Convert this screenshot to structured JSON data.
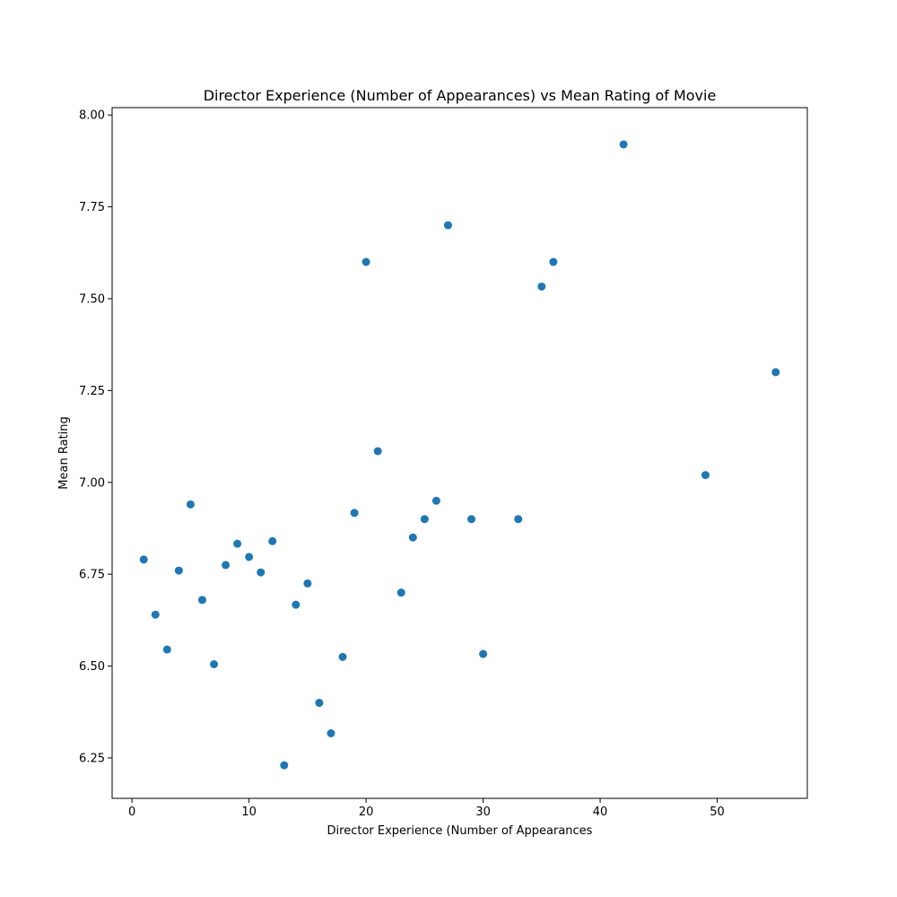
{
  "chart_data": {
    "type": "scatter",
    "title": "Director Experience (Number of Appearances) vs Mean Rating of Movie",
    "xlabel": "Director Experience (Number of Appearances",
    "ylabel": "Mean Rating",
    "xlim": [
      -1.7,
      57.7
    ],
    "ylim": [
      6.14,
      8.02
    ],
    "x_ticks": [
      0,
      10,
      20,
      30,
      40,
      50
    ],
    "x_tick_labels": [
      "0",
      "10",
      "20",
      "30",
      "40",
      "50"
    ],
    "y_ticks": [
      6.25,
      6.5,
      6.75,
      7.0,
      7.25,
      7.5,
      7.75,
      8.0
    ],
    "y_tick_labels": [
      "6.25",
      "6.50",
      "6.75",
      "7.00",
      "7.25",
      "7.50",
      "7.75",
      "8.00"
    ],
    "grid": false,
    "marker_color": "#1f77b4",
    "points": [
      {
        "x": 1,
        "y": 6.79
      },
      {
        "x": 2,
        "y": 6.64
      },
      {
        "x": 3,
        "y": 6.545
      },
      {
        "x": 4,
        "y": 6.76
      },
      {
        "x": 5,
        "y": 6.94
      },
      {
        "x": 6,
        "y": 6.68
      },
      {
        "x": 7,
        "y": 6.505
      },
      {
        "x": 8,
        "y": 6.775
      },
      {
        "x": 9,
        "y": 6.833
      },
      {
        "x": 10,
        "y": 6.797
      },
      {
        "x": 11,
        "y": 6.755
      },
      {
        "x": 12,
        "y": 6.84
      },
      {
        "x": 13,
        "y": 6.23
      },
      {
        "x": 14,
        "y": 6.667
      },
      {
        "x": 15,
        "y": 6.725
      },
      {
        "x": 16,
        "y": 6.4
      },
      {
        "x": 17,
        "y": 6.317
      },
      {
        "x": 18,
        "y": 6.525
      },
      {
        "x": 19,
        "y": 6.917
      },
      {
        "x": 20,
        "y": 7.6
      },
      {
        "x": 21,
        "y": 7.085
      },
      {
        "x": 23,
        "y": 6.7
      },
      {
        "x": 24,
        "y": 6.85
      },
      {
        "x": 25,
        "y": 6.9
      },
      {
        "x": 26,
        "y": 6.95
      },
      {
        "x": 27,
        "y": 7.7
      },
      {
        "x": 29,
        "y": 6.9
      },
      {
        "x": 30,
        "y": 6.533
      },
      {
        "x": 33,
        "y": 6.9
      },
      {
        "x": 35,
        "y": 7.533
      },
      {
        "x": 36,
        "y": 7.6
      },
      {
        "x": 42,
        "y": 7.92
      },
      {
        "x": 49,
        "y": 7.02
      },
      {
        "x": 55,
        "y": 7.3
      }
    ]
  }
}
